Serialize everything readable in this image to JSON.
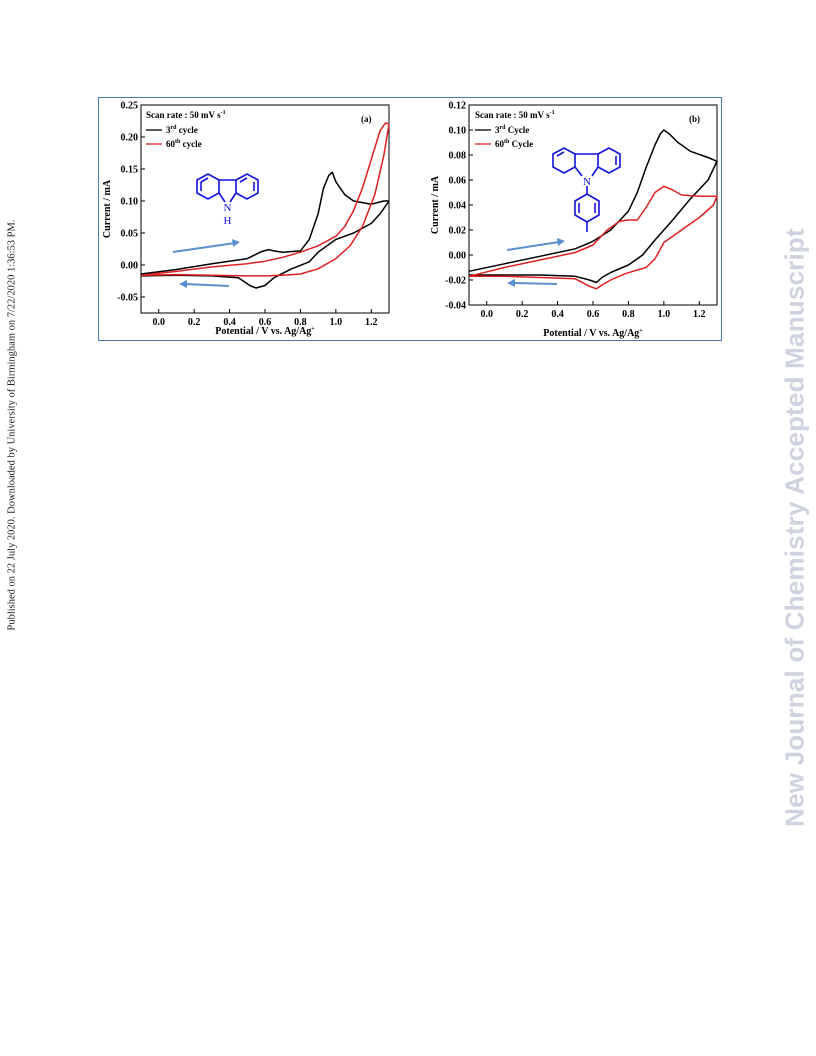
{
  "side_note": "Published on 22 July 2020. Downloaded by University of Birmingham on 7/22/2020 1:36:53 PM.",
  "watermark": "New Journal of Chemistry Accepted Manuscript",
  "colors": {
    "cycle3": "#000000",
    "cycle60": "#e02020",
    "arrow": "#5b8fcf",
    "molecule": "#1010e0",
    "frame": "#4a7ab8"
  },
  "chart_data": [
    {
      "type": "line",
      "panel": "(a)",
      "note_main": "Scan rate : 50 mV s",
      "note_sup": "-1",
      "xlabel_main": "Potential / V vs. Ag/Ag",
      "xlabel_sup": "+",
      "ylabel": "Current / mA",
      "xlim": [
        -0.1,
        1.3
      ],
      "ylim": [
        -0.075,
        0.25
      ],
      "xticks": [
        "0.0",
        "0.2",
        "0.4",
        "0.6",
        "0.8",
        "1.0",
        "1.2"
      ],
      "xtick_values": [
        0.0,
        0.2,
        0.4,
        0.6,
        0.8,
        1.0,
        1.2
      ],
      "yticks": [
        "0.25",
        "0.20",
        "0.15",
        "0.10",
        "0.05",
        "0.00",
        "-0.05"
      ],
      "ytick_values": [
        0.25,
        0.2,
        0.15,
        0.1,
        0.05,
        0.0,
        -0.05
      ],
      "legend": {
        "placement": "top-left"
      },
      "molecule_label": "N",
      "molecule_h": "H",
      "series": [
        {
          "name_num": "3",
          "name_sup": "rd",
          "name_rest": " cycle",
          "color": "#000000",
          "x": [
            -0.1,
            0.1,
            0.3,
            0.5,
            0.58,
            0.62,
            0.65,
            0.7,
            0.8,
            0.85,
            0.9,
            0.93,
            0.96,
            0.98,
            1.0,
            1.05,
            1.1,
            1.2,
            1.27,
            1.3,
            1.25,
            1.2,
            1.1,
            1.0,
            0.9,
            0.85,
            0.75,
            0.65,
            0.6,
            0.55,
            0.52,
            0.45,
            0.3,
            0.1,
            -0.1
          ],
          "y": [
            -0.014,
            -0.007,
            0.002,
            0.01,
            0.021,
            0.024,
            0.022,
            0.02,
            0.022,
            0.04,
            0.08,
            0.12,
            0.14,
            0.145,
            0.13,
            0.11,
            0.1,
            0.095,
            0.1,
            0.1,
            0.08,
            0.065,
            0.05,
            0.04,
            0.02,
            0.005,
            -0.006,
            -0.02,
            -0.032,
            -0.036,
            -0.033,
            -0.02,
            -0.017,
            -0.016,
            -0.017
          ]
        },
        {
          "name_num": "60",
          "name_sup": "th",
          "name_rest": " cycle",
          "color": "#e02020",
          "x": [
            -0.1,
            0.1,
            0.3,
            0.5,
            0.6,
            0.7,
            0.8,
            0.9,
            1.0,
            1.05,
            1.1,
            1.15,
            1.2,
            1.25,
            1.28,
            1.3,
            1.27,
            1.22,
            1.15,
            1.08,
            1.0,
            0.9,
            0.8,
            0.7,
            0.6,
            0.5,
            0.3,
            0.1,
            -0.1
          ],
          "y": [
            -0.016,
            -0.01,
            -0.003,
            0.002,
            0.006,
            0.012,
            0.02,
            0.03,
            0.045,
            0.06,
            0.085,
            0.12,
            0.165,
            0.21,
            0.222,
            0.22,
            0.17,
            0.11,
            0.06,
            0.03,
            0.01,
            -0.006,
            -0.014,
            -0.016,
            -0.017,
            -0.017,
            -0.016,
            -0.015,
            -0.016
          ]
        }
      ]
    },
    {
      "type": "line",
      "panel": "(b)",
      "note_main": "Scan rate : 50 mV s",
      "note_sup": "-1",
      "xlabel_main": "Potential / V vs. Ag/Ag",
      "xlabel_sup": "+",
      "ylabel": "Current / mA",
      "xlim": [
        -0.1,
        1.3
      ],
      "ylim": [
        -0.04,
        0.12
      ],
      "xticks": [
        "0.0",
        "0.2",
        "0.4",
        "0.6",
        "0.8",
        "1.0",
        "1.2"
      ],
      "xtick_values": [
        0.0,
        0.2,
        0.4,
        0.6,
        0.8,
        1.0,
        1.2
      ],
      "yticks": [
        "0.12",
        "0.10",
        "0.08",
        "0.06",
        "0.04",
        "0.02",
        "0.00",
        "-0.02",
        "-0.04"
      ],
      "ytick_values": [
        0.12,
        0.1,
        0.08,
        0.06,
        0.04,
        0.02,
        0.0,
        -0.02,
        -0.04
      ],
      "legend": {
        "placement": "top-left"
      },
      "molecule_label": "N",
      "molecule_h": "",
      "series": [
        {
          "name_num": "3",
          "name_sup": "rd",
          "name_rest": " Cycle",
          "color": "#000000",
          "x": [
            -0.1,
            0.1,
            0.3,
            0.5,
            0.6,
            0.7,
            0.8,
            0.85,
            0.9,
            0.95,
            0.98,
            1.0,
            1.03,
            1.08,
            1.15,
            1.25,
            1.3,
            1.25,
            1.15,
            1.05,
            0.95,
            0.88,
            0.8,
            0.7,
            0.65,
            0.62,
            0.58,
            0.5,
            0.3,
            0.1,
            -0.1
          ],
          "y": [
            -0.013,
            -0.007,
            -0.001,
            0.005,
            0.011,
            0.02,
            0.035,
            0.05,
            0.07,
            0.088,
            0.097,
            0.1,
            0.097,
            0.09,
            0.083,
            0.078,
            0.075,
            0.06,
            0.045,
            0.028,
            0.012,
            0.0,
            -0.008,
            -0.014,
            -0.018,
            -0.022,
            -0.02,
            -0.017,
            -0.016,
            -0.016,
            -0.016
          ]
        },
        {
          "name_num": "60",
          "name_sup": "th",
          "name_rest": " Cycle",
          "color": "#e02020",
          "x": [
            -0.1,
            0.1,
            0.3,
            0.5,
            0.6,
            0.68,
            0.75,
            0.8,
            0.85,
            0.9,
            0.95,
            1.0,
            1.05,
            1.1,
            1.2,
            1.3,
            1.28,
            1.2,
            1.1,
            1.0,
            0.95,
            0.9,
            0.85,
            0.78,
            0.7,
            0.65,
            0.62,
            0.58,
            0.5,
            0.3,
            0.1,
            -0.1
          ],
          "y": [
            -0.017,
            -0.01,
            -0.004,
            0.002,
            0.008,
            0.02,
            0.027,
            0.028,
            0.028,
            0.038,
            0.05,
            0.055,
            0.052,
            0.048,
            0.047,
            0.047,
            0.04,
            0.03,
            0.02,
            0.01,
            -0.003,
            -0.01,
            -0.012,
            -0.015,
            -0.02,
            -0.024,
            -0.027,
            -0.025,
            -0.019,
            -0.018,
            -0.017,
            -0.017
          ]
        }
      ]
    }
  ]
}
